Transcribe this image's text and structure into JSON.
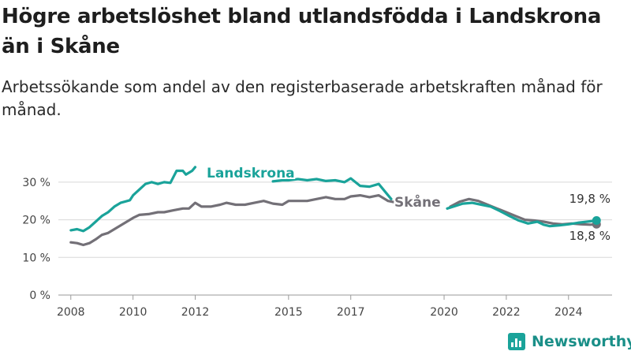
{
  "title": "Högre arbetslöshet bland utlandsfödda i Landskrona än i Skåne",
  "subtitle": "Arbetssökande som andel av den registerbaserade arbetskraften månad för månad.",
  "brand": {
    "name": "Newsworthy",
    "icon": "newsworthy-logo-icon",
    "color": "#1aa39a"
  },
  "chart_data": {
    "type": "line",
    "ylim": [
      0,
      35
    ],
    "xlim": [
      2007.6,
      2025.4
    ],
    "y_ticks": [
      {
        "value": 0,
        "label": "0 %"
      },
      {
        "value": 10,
        "label": "10 %"
      },
      {
        "value": 20,
        "label": "20 %"
      },
      {
        "value": 30,
        "label": "30 %"
      }
    ],
    "x_ticks": [
      {
        "value": 2008,
        "label": "2008"
      },
      {
        "value": 2010,
        "label": "2010"
      },
      {
        "value": 2012,
        "label": "2012"
      },
      {
        "value": 2015,
        "label": "2015"
      },
      {
        "value": 2017,
        "label": "2017"
      },
      {
        "value": 2020,
        "label": "2020"
      },
      {
        "value": 2022,
        "label": "2022"
      },
      {
        "value": 2024,
        "label": "2024"
      }
    ],
    "grid": true,
    "legend": "inline labels",
    "series": [
      {
        "name": "Landskrona",
        "color": "#1aa39a",
        "end_label": "19,8 %",
        "end_value": 19.8,
        "segments": [
          [
            [
              2008.0,
              17.2
            ],
            [
              2008.2,
              17.5
            ],
            [
              2008.4,
              17.0
            ],
            [
              2008.6,
              18.0
            ],
            [
              2008.8,
              19.5
            ],
            [
              2009.0,
              21.0
            ],
            [
              2009.2,
              22.0
            ],
            [
              2009.4,
              23.5
            ],
            [
              2009.6,
              24.5
            ],
            [
              2009.9,
              25.2
            ],
            [
              2010.0,
              26.5
            ],
            [
              2010.2,
              28.0
            ],
            [
              2010.4,
              29.5
            ],
            [
              2010.6,
              30.0
            ],
            [
              2010.8,
              29.5
            ],
            [
              2011.0,
              30.0
            ],
            [
              2011.2,
              29.8
            ],
            [
              2011.4,
              33.0
            ],
            [
              2011.6,
              33.0
            ],
            [
              2011.7,
              32.0
            ],
            [
              2011.9,
              33.0
            ],
            [
              2012.0,
              34.0
            ]
          ],
          [
            [
              2014.5,
              30.2
            ],
            [
              2014.8,
              30.5
            ],
            [
              2015.0,
              30.5
            ],
            [
              2015.3,
              30.8
            ],
            [
              2015.6,
              30.5
            ],
            [
              2015.9,
              30.8
            ],
            [
              2016.2,
              30.3
            ],
            [
              2016.5,
              30.5
            ],
            [
              2016.8,
              30.0
            ],
            [
              2017.0,
              31.0
            ],
            [
              2017.3,
              29.0
            ],
            [
              2017.6,
              28.8
            ],
            [
              2017.9,
              29.5
            ],
            [
              2018.1,
              27.5
            ],
            [
              2018.3,
              25.5
            ]
          ],
          [
            [
              2020.1,
              23.0
            ],
            [
              2020.3,
              23.5
            ],
            [
              2020.6,
              24.3
            ],
            [
              2020.9,
              24.5
            ],
            [
              2021.2,
              24.0
            ],
            [
              2021.5,
              23.5
            ],
            [
              2021.8,
              22.3
            ],
            [
              2022.1,
              21.0
            ],
            [
              2022.4,
              19.8
            ],
            [
              2022.7,
              19.0
            ],
            [
              2023.0,
              19.5
            ],
            [
              2023.2,
              18.7
            ],
            [
              2023.4,
              18.3
            ],
            [
              2023.7,
              18.5
            ],
            [
              2024.0,
              18.8
            ],
            [
              2024.3,
              19.2
            ],
            [
              2024.6,
              19.5
            ],
            [
              2024.9,
              19.8
            ]
          ]
        ]
      },
      {
        "name": "Skåne",
        "color": "#737077",
        "end_label": "18,8 %",
        "end_value": 18.8,
        "segments": [
          [
            [
              2008.0,
              14.0
            ],
            [
              2008.2,
              13.8
            ],
            [
              2008.4,
              13.3
            ],
            [
              2008.6,
              13.8
            ],
            [
              2008.8,
              14.8
            ],
            [
              2009.0,
              16.0
            ],
            [
              2009.2,
              16.5
            ],
            [
              2009.4,
              17.5
            ],
            [
              2009.6,
              18.5
            ],
            [
              2009.8,
              19.5
            ],
            [
              2010.0,
              20.5
            ],
            [
              2010.2,
              21.3
            ],
            [
              2010.5,
              21.5
            ],
            [
              2010.8,
              22.0
            ],
            [
              2011.0,
              22.0
            ],
            [
              2011.3,
              22.5
            ],
            [
              2011.6,
              23.0
            ],
            [
              2011.8,
              23.0
            ],
            [
              2012.0,
              24.5
            ],
            [
              2012.2,
              23.5
            ],
            [
              2012.5,
              23.5
            ],
            [
              2012.8,
              24.0
            ],
            [
              2013.0,
              24.5
            ],
            [
              2013.3,
              24.0
            ],
            [
              2013.6,
              24.0
            ],
            [
              2013.9,
              24.5
            ],
            [
              2014.2,
              25.0
            ],
            [
              2014.5,
              24.3
            ],
            [
              2014.8,
              24.0
            ],
            [
              2015.0,
              25.0
            ],
            [
              2015.3,
              25.0
            ],
            [
              2015.6,
              25.0
            ],
            [
              2015.9,
              25.5
            ],
            [
              2016.2,
              26.0
            ],
            [
              2016.5,
              25.5
            ],
            [
              2016.8,
              25.5
            ],
            [
              2017.0,
              26.2
            ],
            [
              2017.3,
              26.5
            ],
            [
              2017.6,
              26.0
            ],
            [
              2017.9,
              26.5
            ],
            [
              2018.2,
              25.0
            ],
            [
              2018.5,
              24.5
            ]
          ],
          [
            [
              2020.2,
              23.5
            ],
            [
              2020.5,
              24.8
            ],
            [
              2020.8,
              25.5
            ],
            [
              2021.1,
              25.0
            ],
            [
              2021.4,
              24.0
            ],
            [
              2021.7,
              23.0
            ],
            [
              2022.0,
              22.0
            ],
            [
              2022.3,
              21.0
            ],
            [
              2022.6,
              20.0
            ],
            [
              2022.9,
              19.8
            ],
            [
              2023.2,
              19.5
            ],
            [
              2023.5,
              19.0
            ],
            [
              2023.8,
              18.8
            ],
            [
              2024.1,
              19.0
            ],
            [
              2024.4,
              18.8
            ],
            [
              2024.7,
              18.7
            ],
            [
              2024.9,
              18.8
            ]
          ]
        ]
      }
    ]
  }
}
